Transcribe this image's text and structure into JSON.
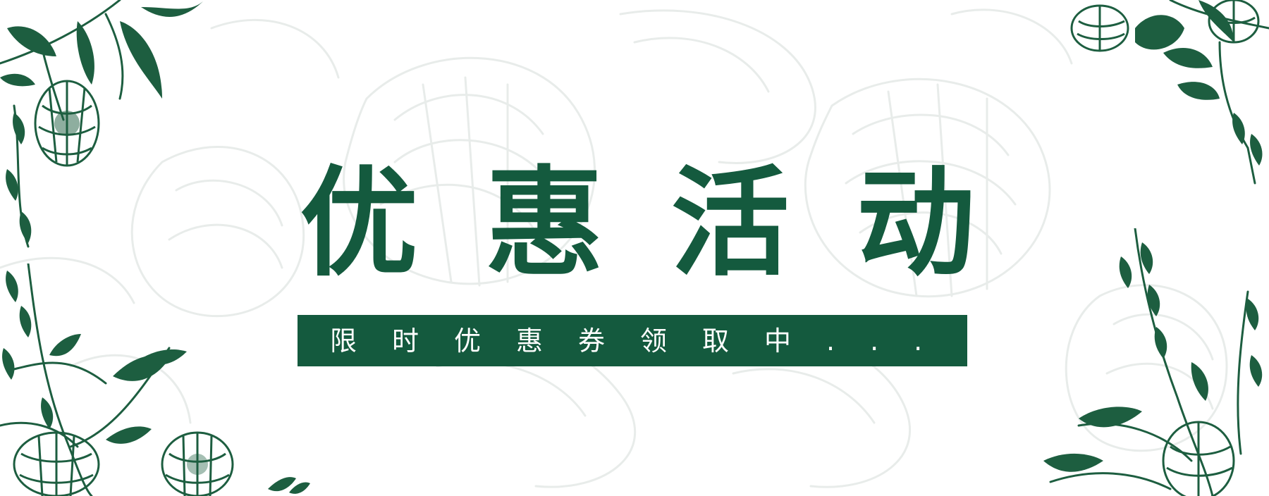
{
  "banner": {
    "title_chars": [
      "优",
      "惠",
      "活",
      "动"
    ],
    "subtitle": "限时优惠券领取中...",
    "colors": {
      "primary_green": "#145a3e",
      "background": "#ffffff",
      "sketch_gray": "#e6eae8",
      "subtitle_text": "#ffffff"
    },
    "decorations": [
      "sketch-flower-background",
      "botanical-corner-top-left",
      "botanical-corner-top-right",
      "botanical-corner-bottom-left",
      "botanical-corner-bottom-right"
    ]
  }
}
